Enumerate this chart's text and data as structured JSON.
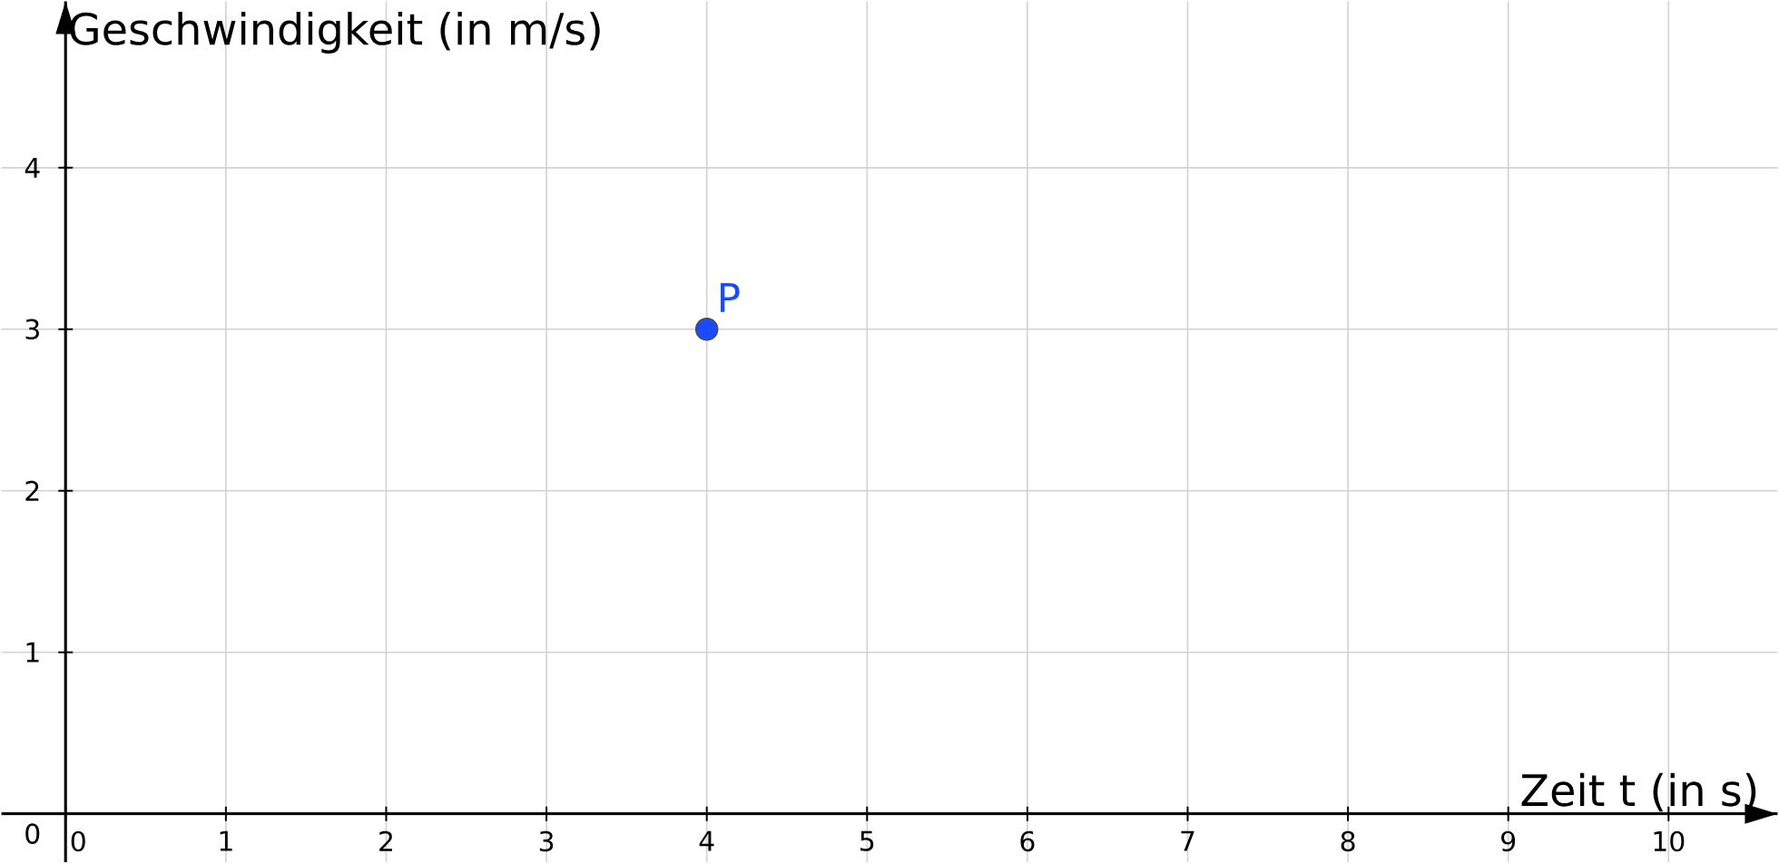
{
  "chart_data": {
    "type": "scatter",
    "xlabel": "Zeit t (in s)",
    "ylabel": "Geschwindigkeit (in m/s)",
    "x": [
      4
    ],
    "values": [
      3
    ],
    "color": "#1a4cff",
    "annotations": [
      {
        "text": "P",
        "x": 4,
        "y": 3
      }
    ],
    "xlim": [
      -0.4,
      10.68
    ],
    "ylim": [
      -0.3,
      5.03
    ],
    "xticks": [
      0,
      1,
      2,
      3,
      4,
      5,
      6,
      7,
      8,
      9,
      10
    ],
    "yticks": [
      0,
      1,
      2,
      3,
      4
    ],
    "grid": true
  }
}
